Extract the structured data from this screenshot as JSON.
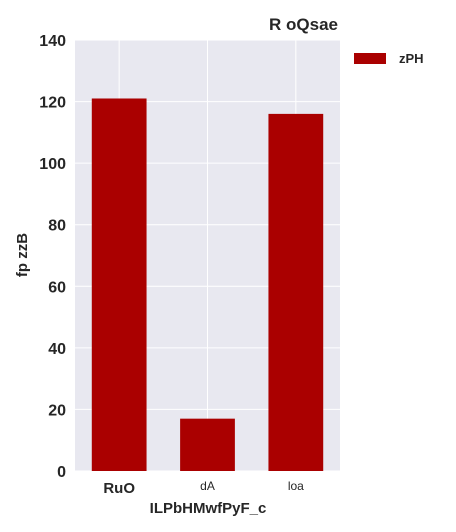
{
  "chart_data": {
    "type": "bar",
    "title": "R oQsae",
    "xlabel": "ILPbHMwfPyF_c",
    "ylabel": "fp zzB",
    "categories": [
      "RuO",
      "dA",
      "loa"
    ],
    "category_bold": [
      true,
      false,
      false
    ],
    "series": [
      {
        "name": "zPH",
        "values": [
          121,
          17,
          116
        ],
        "color": "#aa0000"
      }
    ],
    "ylim": [
      0,
      140
    ],
    "yticks": [
      0,
      20,
      40,
      60,
      80,
      100,
      120,
      140
    ],
    "grid": true,
    "legend_position": "top-right",
    "plot_background": "#e8e8f0"
  }
}
